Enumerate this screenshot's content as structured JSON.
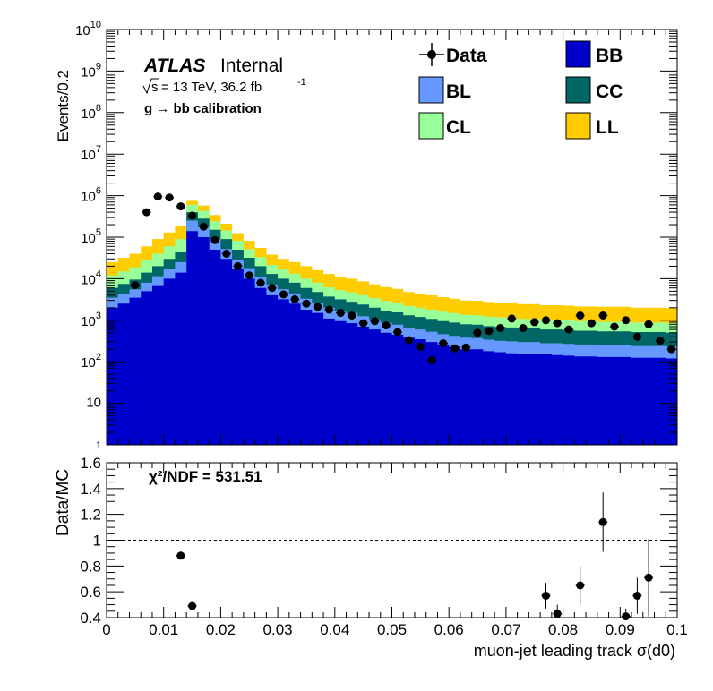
{
  "top_panel": {
    "ylabel": "Events/0.2",
    "atlas_bold": "ATLAS",
    "atlas_suffix": "Internal",
    "sqrt_s": "s",
    "energy_text": "= 13 TeV, 36.2 fb",
    "lumi_exp": "-1",
    "calib_text": "g → bb calibration",
    "legend": [
      {
        "label": "Data",
        "kind": "marker"
      },
      {
        "label": "BB",
        "kind": "box",
        "color": "#0000cc"
      },
      {
        "label": "BL",
        "kind": "box",
        "color": "#6699ff"
      },
      {
        "label": "CC",
        "kind": "box",
        "color": "#006666"
      },
      {
        "label": "CL",
        "kind": "box",
        "color": "#99ff99"
      },
      {
        "label": "LL",
        "kind": "box",
        "color": "#ffcc00"
      }
    ],
    "y_ticks": [
      {
        "value": 1,
        "base": "1",
        "exp": ""
      },
      {
        "value": 10,
        "base": "10",
        "exp": ""
      },
      {
        "value": 100,
        "base": "10",
        "exp": "2"
      },
      {
        "value": 1000,
        "base": "10",
        "exp": "3"
      },
      {
        "value": 10000,
        "base": "10",
        "exp": "4"
      },
      {
        "value": 100000,
        "base": "10",
        "exp": "5"
      },
      {
        "value": 1000000,
        "base": "10",
        "exp": "6"
      },
      {
        "value": 10000000,
        "base": "10",
        "exp": "7"
      },
      {
        "value": 100000000,
        "base": "10",
        "exp": "8"
      },
      {
        "value": 1000000000,
        "base": "10",
        "exp": "9"
      },
      {
        "value": 10000000000,
        "base": "10",
        "exp": "10"
      }
    ]
  },
  "bottom_panel": {
    "ylabel": "Data/MC",
    "xlabel": "muon-jet leading track σ(d0)",
    "chi2_label": "χ²/NDF = 531.51",
    "y_ticks": [
      "0.4",
      "0.6",
      "0.8",
      "1",
      "1.2",
      "1.4",
      "1.6"
    ],
    "x_ticks": [
      "0",
      "0.01",
      "0.02",
      "0.03",
      "0.04",
      "0.05",
      "0.06",
      "0.07",
      "0.08",
      "0.09",
      "0.1"
    ]
  },
  "chart_data": [
    {
      "type": "area",
      "ylabel": "Events/0.2",
      "xlim": [
        0,
        0.1
      ],
      "ylim": [
        1,
        10000000000
      ],
      "yscale": "log",
      "bin_edges": [
        0,
        0.002,
        0.004,
        0.006,
        0.008,
        0.01,
        0.012,
        0.014,
        0.016,
        0.018,
        0.02,
        0.022,
        0.024,
        0.026,
        0.028,
        0.03,
        0.032,
        0.034,
        0.036,
        0.038,
        0.04,
        0.042,
        0.044,
        0.046,
        0.048,
        0.05,
        0.052,
        0.054,
        0.056,
        0.058,
        0.06,
        0.062,
        0.064,
        0.066,
        0.068,
        0.07,
        0.072,
        0.074,
        0.076,
        0.078,
        0.08,
        0.082,
        0.084,
        0.086,
        0.088,
        0.09,
        0.092,
        0.094,
        0.096,
        0.098,
        0.1
      ],
      "stacked_series": [
        {
          "name": "BB",
          "color": "#0000cc",
          "values": [
            2000,
            2500,
            3500,
            5000,
            7000,
            10000,
            14000,
            140000,
            100000,
            50000,
            30000,
            17000,
            10000,
            6000,
            4000,
            3200,
            2500,
            1800,
            1500,
            1100,
            950,
            850,
            700,
            600,
            500,
            450,
            380,
            350,
            300,
            260,
            230,
            200,
            200,
            180,
            170,
            160,
            150,
            155,
            150,
            145,
            140,
            135,
            135,
            130,
            130,
            130,
            125,
            125,
            125,
            120
          ]
        },
        {
          "name": "BL",
          "color": "#6699ff",
          "values": [
            3500,
            4300,
            5500,
            8000,
            11500,
            17000,
            25000,
            250000,
            175000,
            90000,
            52000,
            29000,
            18000,
            11000,
            7200,
            5600,
            4400,
            3300,
            2600,
            2000,
            1700,
            1500,
            1250,
            1050,
            880,
            780,
            650,
            600,
            530,
            460,
            420,
            380,
            370,
            340,
            320,
            310,
            300,
            300,
            280,
            280,
            270,
            260,
            260,
            250,
            250,
            250,
            240,
            240,
            240,
            230
          ]
        },
        {
          "name": "CC",
          "color": "#006666",
          "values": [
            6000,
            7500,
            9500,
            14000,
            20000,
            30000,
            45000,
            400000,
            280000,
            150000,
            90000,
            50000,
            32000,
            20000,
            13000,
            10000,
            8000,
            6000,
            4800,
            3700,
            3200,
            2800,
            2400,
            2000,
            1700,
            1550,
            1320,
            1200,
            1080,
            950,
            880,
            800,
            780,
            720,
            690,
            670,
            640,
            640,
            600,
            600,
            580,
            560,
            560,
            540,
            540,
            540,
            520,
            520,
            520,
            500
          ]
        },
        {
          "name": "CL",
          "color": "#99ff99",
          "values": [
            12000,
            15000,
            19000,
            28000,
            40000,
            60000,
            90000,
            600000,
            430000,
            240000,
            145000,
            82000,
            52000,
            33000,
            21500,
            16500,
            13200,
            10000,
            8000,
            6200,
            5300,
            4700,
            4000,
            3400,
            2900,
            2600,
            2200,
            2000,
            1800,
            1600,
            1480,
            1350,
            1320,
            1220,
            1170,
            1130,
            1080,
            1080,
            1020,
            1020,
            990,
            950,
            950,
            920,
            920,
            920,
            880,
            880,
            880,
            850
          ]
        },
        {
          "name": "LL",
          "color": "#ffcc00",
          "values": [
            25000,
            32000,
            40000,
            60000,
            90000,
            130000,
            190000,
            750000,
            580000,
            340000,
            210000,
            125000,
            82000,
            55000,
            38000,
            30000,
            25000,
            20000,
            16000,
            13000,
            11000,
            10000,
            8600,
            7300,
            6300,
            5700,
            4800,
            4400,
            4000,
            3600,
            3300,
            3000,
            2950,
            2750,
            2650,
            2550,
            2450,
            2450,
            2300,
            2300,
            2250,
            2150,
            2150,
            2100,
            2100,
            2100,
            2000,
            2000,
            2000,
            1950
          ]
        }
      ],
      "data": {
        "name": "Data",
        "x": [
          0.005,
          0.007,
          0.009,
          0.011,
          0.013,
          0.015,
          0.017,
          0.019,
          0.021,
          0.023,
          0.025,
          0.027,
          0.029,
          0.031,
          0.033,
          0.035,
          0.037,
          0.039,
          0.041,
          0.043,
          0.045,
          0.047,
          0.049,
          0.051,
          0.053,
          0.055,
          0.057,
          0.059,
          0.061,
          0.063,
          0.065,
          0.067,
          0.069,
          0.071,
          0.073,
          0.075,
          0.077,
          0.079,
          0.081,
          0.083,
          0.085,
          0.087,
          0.089,
          0.091,
          0.093,
          0.095,
          0.097,
          0.099
        ],
        "y": [
          7000,
          400000,
          950000,
          900000,
          550000,
          330000,
          180000,
          85000,
          40000,
          20000,
          12000,
          8000,
          6000,
          4200,
          3200,
          2500,
          2100,
          1800,
          1500,
          1300,
          850,
          950,
          750,
          520,
          330,
          230,
          110,
          280,
          210,
          220,
          500,
          550,
          650,
          1100,
          650,
          900,
          1000,
          850,
          600,
          1300,
          850,
          1300,
          700,
          1000,
          400,
          800,
          320,
          200
        ]
      }
    },
    {
      "type": "scatter",
      "ylabel": "Data/MC",
      "xlabel": "muon-jet leading track σ(d0)",
      "xlim": [
        0,
        0.1
      ],
      "ylim": [
        0.4,
        1.6
      ],
      "reference_line": 1,
      "series": [
        {
          "name": "Data/MC",
          "x": [
            0.013,
            0.015,
            0.077,
            0.079,
            0.083,
            0.087,
            0.091,
            0.093,
            0.095
          ],
          "y": [
            0.88,
            0.49,
            0.57,
            0.43,
            0.65,
            1.14,
            0.41,
            0.57,
            0.71
          ],
          "yerr": [
            0.005,
            0.005,
            0.1,
            0.07,
            0.15,
            0.23,
            0.06,
            0.14,
            0.3
          ]
        }
      ]
    }
  ]
}
